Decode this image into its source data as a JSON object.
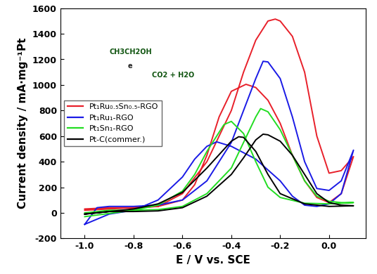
{
  "chart_data": {
    "type": "line",
    "x_label": "E / V vs. SCE",
    "y_label": "Current density / mA·mg⁻¹Pt",
    "xlim": [
      -1.1,
      0.15
    ],
    "xticks": [
      -1.0,
      -0.8,
      -0.6,
      -0.4,
      -0.2,
      0.0
    ],
    "ylim": [
      -200,
      1600
    ],
    "yticks": [
      -200,
      0,
      200,
      400,
      600,
      800,
      1000,
      1200,
      1400,
      1600
    ],
    "legend": "center left",
    "annotations": [
      "CH3CH2OH",
      "e",
      "CO2 + H2O"
    ],
    "series": [
      {
        "name": "Pt₁Ru₀.₅Sn₀.₅-RGO",
        "color": "#e8202a",
        "x": [
          -1.0,
          -0.9,
          -0.8,
          -0.7,
          -0.6,
          -0.5,
          -0.4,
          -0.35,
          -0.3,
          -0.25,
          -0.22,
          -0.2,
          -0.15,
          -0.1,
          -0.05,
          0.0,
          0.05,
          0.1,
          0.05,
          0.0,
          -0.05,
          -0.1,
          -0.15,
          -0.2,
          -0.25,
          -0.3,
          -0.34,
          -0.4,
          -0.45,
          -0.5,
          -0.55,
          -0.6,
          -0.7,
          -0.8,
          -1.0
        ],
        "values": [
          30,
          40,
          40,
          50,
          150,
          400,
          800,
          1100,
          1350,
          1500,
          1515,
          1500,
          1380,
          1100,
          600,
          310,
          330,
          440,
          150,
          80,
          120,
          250,
          450,
          700,
          880,
          980,
          1005,
          950,
          750,
          450,
          220,
          100,
          50,
          40,
          20
        ]
      },
      {
        "name": "Pt₁Ru₁-RGO",
        "color": "#1a1ae6",
        "x": [
          -1.0,
          -0.95,
          -0.9,
          -0.8,
          -0.7,
          -0.6,
          -0.5,
          -0.4,
          -0.35,
          -0.3,
          -0.27,
          -0.25,
          -0.2,
          -0.15,
          -0.1,
          -0.05,
          0.0,
          0.05,
          0.1,
          0.05,
          0.0,
          -0.05,
          -0.1,
          -0.15,
          -0.2,
          -0.3,
          -0.4,
          -0.46,
          -0.5,
          -0.55,
          -0.6,
          -0.7,
          -0.8,
          -0.9,
          -1.0
        ],
        "values": [
          -90,
          40,
          50,
          50,
          60,
          100,
          250,
          550,
          800,
          1050,
          1185,
          1180,
          1050,
          750,
          400,
          190,
          175,
          250,
          490,
          150,
          70,
          50,
          60,
          130,
          250,
          420,
          520,
          555,
          520,
          420,
          280,
          100,
          20,
          -10,
          -90
        ]
      },
      {
        "name": "Pt₁Sn₁-RGO",
        "color": "#22dd22",
        "x": [
          -1.0,
          -0.9,
          -0.8,
          -0.7,
          -0.6,
          -0.5,
          -0.4,
          -0.35,
          -0.3,
          -0.28,
          -0.25,
          -0.2,
          -0.15,
          -0.1,
          -0.05,
          0.0,
          0.05,
          0.1,
          0.0,
          -0.1,
          -0.2,
          -0.25,
          -0.3,
          -0.35,
          -0.4,
          -0.43,
          -0.5,
          -0.55,
          -0.6,
          -0.7,
          -0.8,
          -1.0
        ],
        "values": [
          0,
          20,
          20,
          25,
          50,
          150,
          350,
          550,
          750,
          815,
          790,
          650,
          450,
          250,
          130,
          90,
          80,
          80,
          70,
          75,
          120,
          200,
          400,
          620,
          715,
          690,
          480,
          300,
          170,
          60,
          20,
          -30
        ]
      },
      {
        "name": "Pt-C(commer.)",
        "color": "#000000",
        "x": [
          -1.0,
          -0.9,
          -0.8,
          -0.7,
          -0.6,
          -0.5,
          -0.4,
          -0.35,
          -0.3,
          -0.27,
          -0.25,
          -0.2,
          -0.15,
          -0.1,
          -0.05,
          0.0,
          0.05,
          0.1,
          0.0,
          -0.1,
          -0.2,
          -0.25,
          -0.3,
          -0.35,
          -0.37,
          -0.4,
          -0.5,
          -0.6,
          -0.7,
          -0.8,
          -1.0
        ],
        "values": [
          -10,
          10,
          10,
          15,
          40,
          130,
          300,
          430,
          570,
          615,
          610,
          560,
          450,
          300,
          150,
          80,
          60,
          55,
          50,
          70,
          150,
          300,
          480,
          590,
          595,
          560,
          350,
          160,
          70,
          30,
          -10
        ]
      }
    ]
  }
}
